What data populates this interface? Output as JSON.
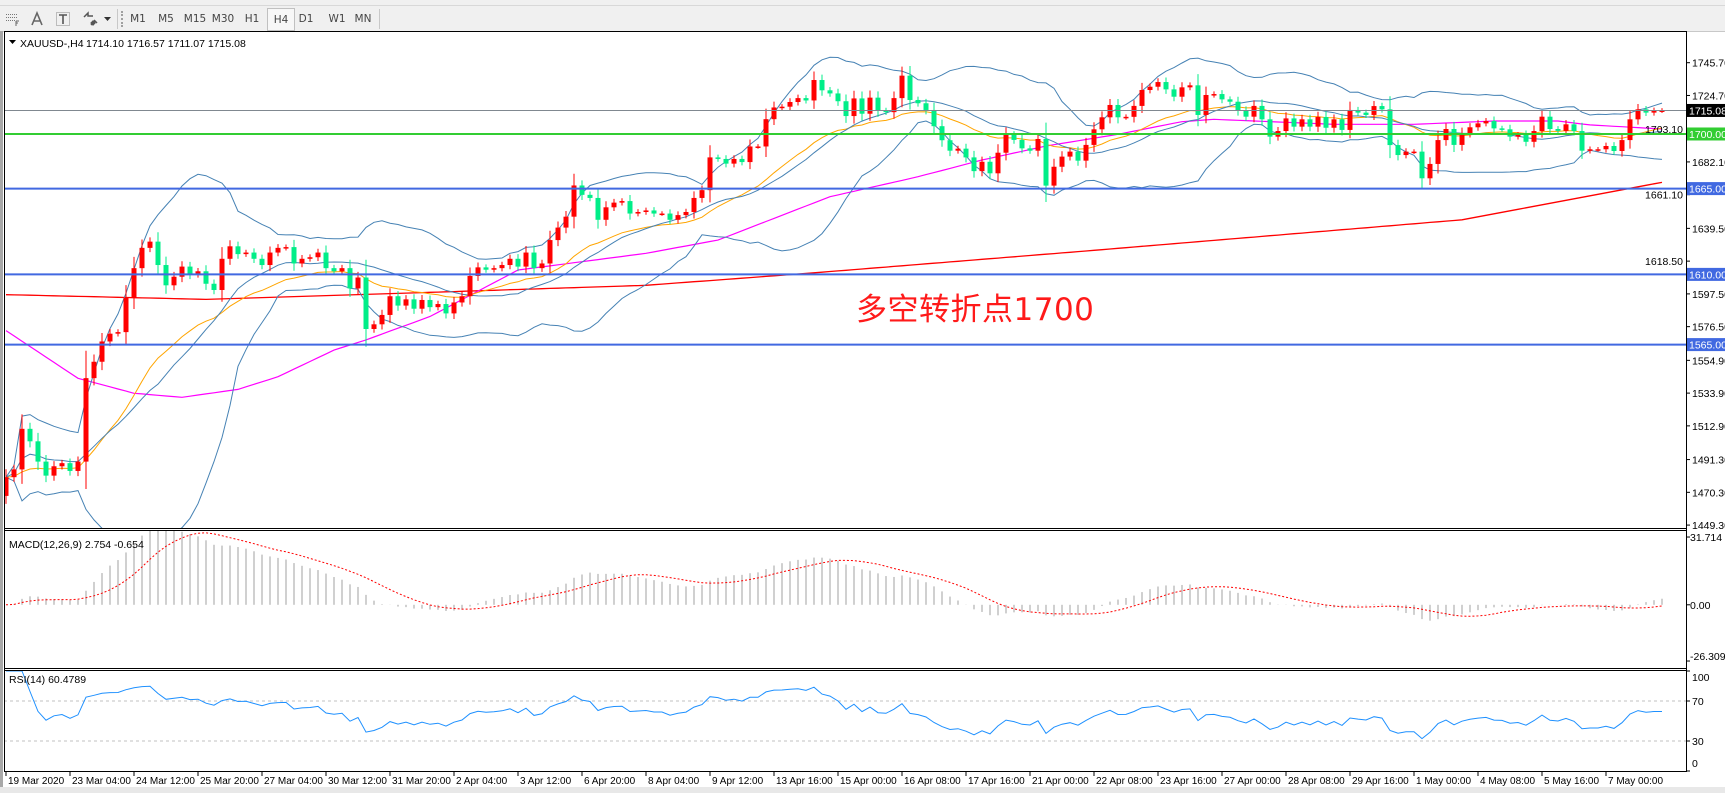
{
  "toolbar": {
    "tools": [
      {
        "icon": "period-separators-icon"
      },
      {
        "icon": "text-tool-icon"
      },
      {
        "icon": "text-label-icon"
      },
      {
        "icon": "arrows-shapes-icon"
      },
      {
        "icon": "chevron-down-icon"
      }
    ],
    "timeframes": [
      "M1",
      "M5",
      "M15",
      "M30",
      "H1",
      "H4",
      "D1",
      "W1",
      "MN"
    ],
    "active_timeframe": "H4"
  },
  "chart": {
    "symbol": "XAUUSD-,H4",
    "ohlc": "1714.10 1716.57 1711.07 1715.08",
    "annotation": "多空转折点1700",
    "macd_label": "MACD(12,26,9) 2.754 -0.654",
    "rsi_label": "RSI(14) 60.4789"
  },
  "chart_data": {
    "type": "candlestick",
    "symbol": "XAUUSD-",
    "timeframe": "H4",
    "colors": {
      "up": "#ff0000",
      "down": "#00ee88",
      "bollinger": "#4682b4",
      "ma_fast": "#ffa500",
      "ma_mid": "#ff00ff",
      "ma_slow": "#ff0000",
      "rsi": "#1e90ff",
      "macd_hist": "#c0c0c0",
      "macd_signal": "#ff0000"
    },
    "first_open": 1468,
    "closes": [
      1480,
      1485,
      1511,
      1503,
      1490,
      1481,
      1487,
      1489,
      1484,
      1490,
      1543.5,
      1554,
      1567,
      1572,
      1573,
      1595,
      1614,
      1627,
      1631,
      1616,
      1603,
      1608.5,
      1615,
      1610,
      1612,
      1604,
      1600,
      1620,
      1628,
      1623,
      1624,
      1620,
      1616,
      1624,
      1627,
      1627.5,
      1617,
      1620,
      1621,
      1624,
      1614,
      1612,
      1614,
      1601,
      1608,
      1575,
      1578,
      1584,
      1596,
      1590,
      1594,
      1588,
      1593.6,
      1589,
      1591,
      1585,
      1592,
      1596,
      1609,
      1614.5,
      1613,
      1614,
      1616,
      1620,
      1615,
      1624,
      1614,
      1617,
      1632,
      1640,
      1647,
      1667,
      1661,
      1659,
      1645,
      1653,
      1656,
      1657,
      1649,
      1650,
      1651,
      1649,
      1649,
      1645,
      1648,
      1650,
      1659,
      1664,
      1685,
      1684,
      1681,
      1684,
      1682,
      1692,
      1692,
      1709.5,
      1717,
      1717.5,
      1720.5,
      1723,
      1721.5,
      1734.6,
      1728,
      1726,
      1721,
      1711.5,
      1722.8,
      1713,
      1723.3,
      1715,
      1714,
      1723,
      1737.4,
      1721.8,
      1719.7,
      1715.4,
      1705,
      1696,
      1689.3,
      1690.6,
      1685,
      1676.2,
      1682.2,
      1674.8,
      1688,
      1699.4,
      1696.2,
      1690.8,
      1689.3,
      1696.8,
      1666.9,
      1679,
      1685.5,
      1688.7,
      1682.9,
      1693,
      1703,
      1710.7,
      1718.6,
      1710.7,
      1711,
      1718,
      1728.2,
      1730.3,
      1733.3,
      1728.6,
      1723.9,
      1729.9,
      1731.2,
      1712.2,
      1725,
      1725.6,
      1722.2,
      1720.7,
      1715,
      1711.1,
      1718,
      1709.4,
      1698.3,
      1701.9,
      1710,
      1704.7,
      1709.4,
      1704.7,
      1710.9,
      1704,
      1709.4,
      1702.6,
      1715.4,
      1713.7,
      1712.2,
      1717.9,
      1715.8,
      1692.9,
      1686.5,
      1688.7,
      1688.7,
      1671.6,
      1680.8,
      1696.1,
      1703.2,
      1693,
      1700.4,
      1704.3,
      1706.8,
      1708.3,
      1703.6,
      1703,
      1698.3,
      1699.4,
      1695,
      1701.9,
      1711.1,
      1703.2,
      1702,
      1706.2,
      1701.9,
      1689.3,
      1690.2,
      1690.2,
      1692.3,
      1689.1,
      1696.1,
      1709.4,
      1715.8,
      1713.7,
      1715,
      1715.08
    ],
    "ma_mid_points": [
      [
        0,
        1574
      ],
      [
        9,
        1543.4
      ],
      [
        16,
        1533.8
      ],
      [
        22,
        1531.2
      ],
      [
        29,
        1536.3
      ],
      [
        34,
        1544.4
      ],
      [
        41,
        1561.5
      ],
      [
        45,
        1568
      ],
      [
        53,
        1583
      ],
      [
        64,
        1612.8
      ],
      [
        80,
        1623.5
      ],
      [
        89,
        1632
      ],
      [
        103,
        1659.8
      ],
      [
        114,
        1672.6
      ],
      [
        122,
        1683.3
      ],
      [
        130,
        1692.3
      ],
      [
        139,
        1699.8
      ],
      [
        147,
        1707.9
      ],
      [
        151,
        1709.4
      ],
      [
        160,
        1707.5
      ],
      [
        166,
        1706.2
      ],
      [
        176,
        1706.2
      ],
      [
        186,
        1708.3
      ],
      [
        194,
        1708.3
      ],
      [
        198,
        1705.8
      ],
      [
        207,
        1703.2
      ]
    ],
    "ma_slow_points": [
      [
        0,
        1597
      ],
      [
        25,
        1594
      ],
      [
        50,
        1598
      ],
      [
        80,
        1603
      ],
      [
        101,
        1611
      ],
      [
        135,
        1625
      ],
      [
        182,
        1645
      ],
      [
        207,
        1669
      ]
    ],
    "price_axis": {
      "ticks": [
        1745.7,
        1724.7,
        1703.1,
        1682.1,
        1661.1,
        1639.5,
        1618.5,
        1597.5,
        1576.5,
        1554.9,
        1533.9,
        1512.9,
        1491.3,
        1470.3,
        1449.3
      ],
      "range": [
        1449.3,
        1745.7
      ]
    },
    "hlines": [
      {
        "price": 1715.08,
        "label": "1715.08",
        "line": "#808890",
        "box": "#000000"
      },
      {
        "price": 1700.0,
        "label": "1700.00",
        "line": "#32cd32",
        "box": "#32cd32"
      },
      {
        "price": 1665.0,
        "label": "1665.00",
        "line": "#4169e1",
        "box": "#4169e1"
      },
      {
        "price": 1610.0,
        "label": "1610.00",
        "line": "#4169e1",
        "box": "#4169e1"
      },
      {
        "price": 1565.0,
        "label": "1565.00",
        "line": "#4169e1",
        "box": "#4169e1"
      }
    ],
    "macd": {
      "params": [
        12,
        26,
        9
      ],
      "axis_labels": [
        "31.714",
        "0.00",
        "-26.309"
      ],
      "range": [
        -26.309,
        31.714
      ]
    },
    "rsi": {
      "period": 14,
      "levels": [
        70,
        30
      ],
      "axis_labels": [
        "100",
        "70",
        "30",
        "0"
      ],
      "range": [
        0,
        100
      ]
    },
    "time_labels": [
      "19 Mar 2020",
      "23 Mar 04:00",
      "24 Mar 12:00",
      "25 Mar 20:00",
      "27 Mar 04:00",
      "30 Mar 12:00",
      "31 Mar 20:00",
      "2 Apr 04:00",
      "3 Apr 12:00",
      "6 Apr 20:00",
      "8 Apr 04:00",
      "9 Apr 12:00",
      "13 Apr 16:00",
      "15 Apr 00:00",
      "16 Apr 08:00",
      "17 Apr 16:00",
      "21 Apr 00:00",
      "22 Apr 08:00",
      "23 Apr 16:00",
      "27 Apr 00:00",
      "28 Apr 08:00",
      "29 Apr 16:00",
      "1 May 00:00",
      "4 May 08:00",
      "5 May 16:00",
      "7 May 00:00"
    ]
  }
}
